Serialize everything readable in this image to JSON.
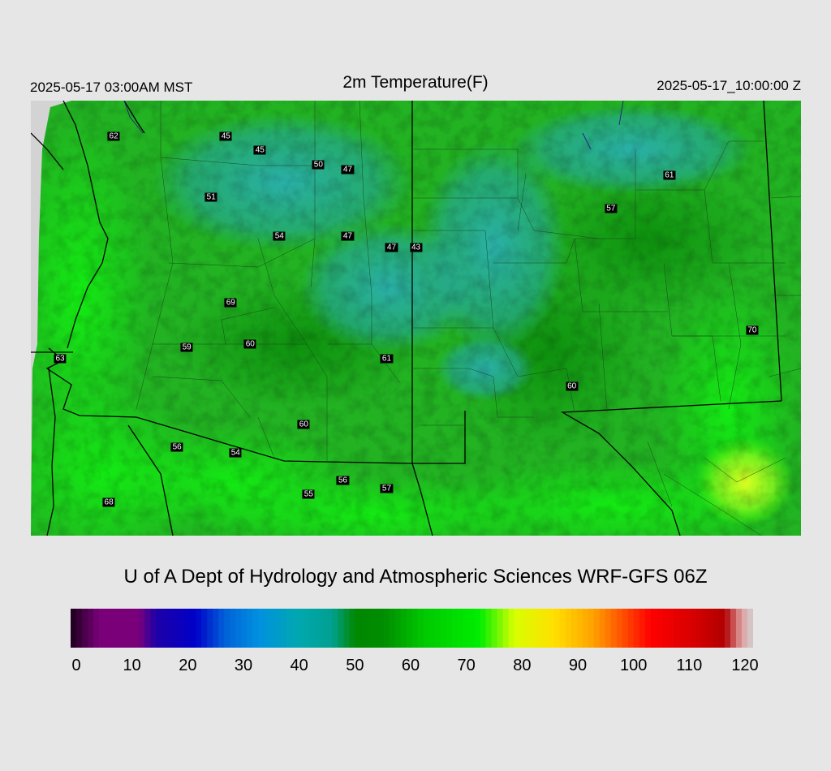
{
  "header": {
    "local_time": "2025-05-17 03:00AM MST",
    "title": "2m Temperature(F)",
    "utc_time": "2025-05-17_10:00:00 Z"
  },
  "credit": "U of A Dept of Hydrology and Atmospheric Sciences WRF-GFS 06Z",
  "colorbar": {
    "min": 0,
    "max": 120,
    "ticks": [
      "0",
      "10",
      "20",
      "30",
      "40",
      "50",
      "60",
      "70",
      "80",
      "90",
      "100",
      "110",
      "120"
    ],
    "stops": [
      {
        "value": 0,
        "color": "#1a001a"
      },
      {
        "value": 5,
        "color": "#7a007a"
      },
      {
        "value": 12,
        "color": "#7a007a"
      },
      {
        "value": 15,
        "color": "#1e00a8"
      },
      {
        "value": 22,
        "color": "#0000c8"
      },
      {
        "value": 27,
        "color": "#0060d8"
      },
      {
        "value": 33,
        "color": "#0090e0"
      },
      {
        "value": 40,
        "color": "#00a8b0"
      },
      {
        "value": 46,
        "color": "#00a090"
      },
      {
        "value": 50,
        "color": "#008800"
      },
      {
        "value": 55,
        "color": "#008c00"
      },
      {
        "value": 62,
        "color": "#00c800"
      },
      {
        "value": 72,
        "color": "#00ee00"
      },
      {
        "value": 78,
        "color": "#d8ff00"
      },
      {
        "value": 85,
        "color": "#ffe000"
      },
      {
        "value": 92,
        "color": "#ffa000"
      },
      {
        "value": 97,
        "color": "#ff5000"
      },
      {
        "value": 102,
        "color": "#ff0000"
      },
      {
        "value": 110,
        "color": "#d40000"
      },
      {
        "value": 115,
        "color": "#b00000"
      },
      {
        "value": 118,
        "color": "#e0a0a0"
      },
      {
        "value": 120,
        "color": "#d0d0d0"
      }
    ]
  },
  "stations": [
    {
      "label": "62",
      "lon": -114.0,
      "lat": 36.8
    },
    {
      "label": "45",
      "lon": -111.7,
      "lat": 36.8
    },
    {
      "label": "45",
      "lon": -111.0,
      "lat": 36.55
    },
    {
      "label": "50",
      "lon": -109.8,
      "lat": 36.3
    },
    {
      "label": "47",
      "lon": -109.2,
      "lat": 36.2
    },
    {
      "label": "51",
      "lon": -112.0,
      "lat": 35.7
    },
    {
      "label": "54",
      "lon": -110.6,
      "lat": 35.0
    },
    {
      "label": "47",
      "lon": -109.2,
      "lat": 35.0
    },
    {
      "label": "47",
      "lon": -108.3,
      "lat": 34.8
    },
    {
      "label": "43",
      "lon": -107.8,
      "lat": 34.8
    },
    {
      "label": "61",
      "lon": -102.6,
      "lat": 36.1
    },
    {
      "label": "57",
      "lon": -103.8,
      "lat": 35.5
    },
    {
      "label": "69",
      "lon": -111.6,
      "lat": 33.8
    },
    {
      "label": "59",
      "lon": -112.5,
      "lat": 33.0
    },
    {
      "label": "60",
      "lon": -111.2,
      "lat": 33.05
    },
    {
      "label": "61",
      "lon": -108.4,
      "lat": 32.8
    },
    {
      "label": "60",
      "lon": -104.6,
      "lat": 32.3
    },
    {
      "label": "70",
      "lon": -100.9,
      "lat": 33.3
    },
    {
      "label": "63",
      "lon": -115.1,
      "lat": 32.8
    },
    {
      "label": "56",
      "lon": -112.7,
      "lat": 31.2
    },
    {
      "label": "54",
      "lon": -111.5,
      "lat": 31.1
    },
    {
      "label": "60",
      "lon": -110.1,
      "lat": 31.6
    },
    {
      "label": "56",
      "lon": -109.3,
      "lat": 30.6
    },
    {
      "label": "55",
      "lon": -110.0,
      "lat": 30.35
    },
    {
      "label": "57",
      "lon": -108.4,
      "lat": 30.45
    },
    {
      "label": "68",
      "lon": -114.1,
      "lat": 30.2
    }
  ]
}
